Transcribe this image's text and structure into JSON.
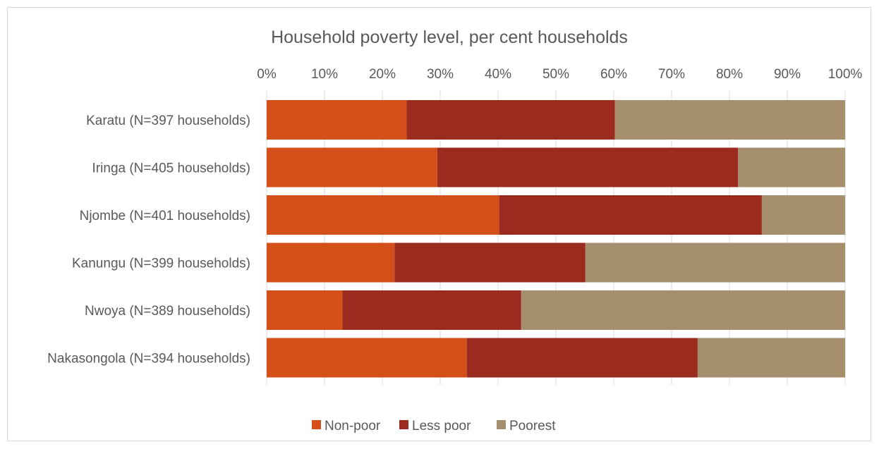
{
  "chart_data": {
    "type": "bar",
    "orientation": "horizontal",
    "stacked": true,
    "title": "Household poverty level, per cent households",
    "xlim": [
      0,
      100
    ],
    "x_ticks": [
      "0%",
      "10%",
      "20%",
      "30%",
      "40%",
      "50%",
      "60%",
      "70%",
      "80%",
      "90%",
      "100%"
    ],
    "x_axis_position": "top",
    "grid": true,
    "legend_position": "bottom",
    "categories": [
      "Karatu (N=397 households)",
      "Iringa (N=405 households)",
      "Njombe (N=401 households)",
      "Kanungu (N=399 households)",
      "Nwoya (N=389 households)",
      "Nakasongola (N=394 households)"
    ],
    "series": [
      {
        "name": "Non-poor",
        "color": "#d44f1a",
        "values": [
          24.2,
          29.5,
          40.2,
          22.1,
          13.1,
          34.6
        ]
      },
      {
        "name": "Less poor",
        "color": "#9b2b1f",
        "values": [
          36.0,
          52.0,
          45.4,
          33.0,
          30.9,
          39.9
        ]
      },
      {
        "name": "Poorest",
        "color": "#a58f6c",
        "values": [
          39.8,
          18.5,
          14.4,
          44.9,
          56.0,
          25.5
        ]
      }
    ]
  }
}
